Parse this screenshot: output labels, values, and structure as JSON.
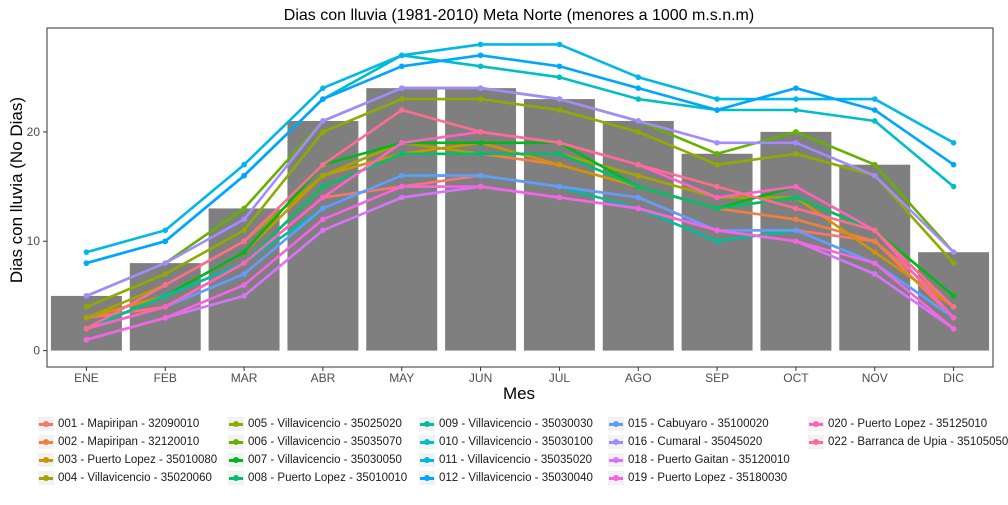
{
  "chart_data": {
    "type": "bar",
    "title": "Dias con lluvia (1981-2010) Meta Norte (menores a 1000 m.s.n.m)",
    "xlabel": "Mes",
    "ylabel": "Dias con lluvia (No Dias)",
    "categories": [
      "ENE",
      "FEB",
      "MAR",
      "ABR",
      "MAY",
      "JUN",
      "JUL",
      "AGO",
      "SEP",
      "OCT",
      "NOV",
      "DIC"
    ],
    "y_ticks": [
      0,
      10,
      20
    ],
    "ylim": [
      -1.5,
      29.5
    ],
    "grid": false,
    "bars": {
      "color": "#7f7f7f",
      "values": [
        5,
        8,
        13,
        21,
        24,
        24,
        23,
        21,
        18,
        20,
        17,
        9
      ]
    },
    "legend_position": "bottom",
    "series": [
      {
        "name": "001 - Mapiripan - 32090010",
        "color": "#F8766D",
        "values": [
          3,
          4,
          8,
          14,
          15,
          16,
          15,
          14,
          11,
          11,
          10,
          3
        ]
      },
      {
        "name": "002 - Mapiripan - 32120010",
        "color": "#ED8141",
        "values": [
          2,
          4,
          8,
          15,
          18,
          18,
          17,
          15,
          13,
          12,
          10,
          4
        ]
      },
      {
        "name": "003 - Puerto Lopez - 35010080",
        "color": "#CF9400",
        "values": [
          3,
          5,
          9,
          16,
          18,
          19,
          17,
          15,
          13,
          14,
          9,
          4
        ]
      },
      {
        "name": "004 - Villavicencio - 35020060",
        "color": "#A3A500",
        "values": [
          3,
          6,
          10,
          16,
          19,
          18,
          18,
          16,
          14,
          14,
          11,
          5
        ]
      },
      {
        "name": "005 - Villavicencio - 35025020",
        "color": "#8EAB00",
        "values": [
          4,
          7,
          11,
          20,
          23,
          23,
          22,
          20,
          17,
          18,
          16,
          8
        ]
      },
      {
        "name": "006 - Villavicencio - 35035070",
        "color": "#64B200",
        "values": [
          5,
          8,
          13,
          21,
          24,
          24,
          23,
          21,
          18,
          20,
          17,
          9
        ]
      },
      {
        "name": "007 - Villavicencio - 35030050",
        "color": "#00B81B",
        "values": [
          2,
          5,
          9,
          17,
          19,
          19,
          19,
          15,
          13,
          15,
          11,
          5
        ]
      },
      {
        "name": "008 - Puerto Lopez - 35010010",
        "color": "#00BE6C",
        "values": [
          2,
          5,
          8,
          15,
          18,
          18,
          18,
          15,
          13,
          14,
          11,
          4
        ]
      },
      {
        "name": "009 - Villavicencio - 35030030",
        "color": "#00BE9A",
        "values": [
          2,
          5,
          8,
          13,
          16,
          16,
          15,
          13,
          10,
          11,
          8,
          3
        ]
      },
      {
        "name": "010 - Villavicencio - 35030100",
        "color": "#00BFC4",
        "values": [
          8,
          10,
          16,
          23,
          27,
          26,
          25,
          23,
          22,
          22,
          21,
          15
        ]
      },
      {
        "name": "011 - Villavicencio - 35035020",
        "color": "#00B7E8",
        "values": [
          9,
          11,
          17,
          24,
          27,
          28,
          28,
          25,
          23,
          23,
          23,
          19
        ]
      },
      {
        "name": "012 - Villavicencio - 35030040",
        "color": "#00A5FF",
        "values": [
          8,
          10,
          16,
          23,
          26,
          27,
          26,
          24,
          22,
          24,
          22,
          17
        ]
      },
      {
        "name": "015 - Cabuyaro - 35100020",
        "color": "#619CFF",
        "values": [
          2,
          4,
          7,
          13,
          16,
          16,
          15,
          14,
          11,
          11,
          8,
          3
        ]
      },
      {
        "name": "016 - Cumaral - 35045020",
        "color": "#A58AFF",
        "values": [
          5,
          8,
          12,
          21,
          24,
          24,
          23,
          21,
          19,
          19,
          16,
          9
        ]
      },
      {
        "name": "018 - Puerto Gaitan - 35120010",
        "color": "#DB72FB",
        "values": [
          1,
          3,
          5,
          11,
          14,
          15,
          14,
          13,
          11,
          10,
          7,
          2
        ]
      },
      {
        "name": "019 - Puerto Lopez - 35180030",
        "color": "#F564E3",
        "values": [
          1,
          3,
          6,
          12,
          15,
          15,
          14,
          13,
          11,
          10,
          8,
          2
        ]
      },
      {
        "name": "020 - Puerto Lopez - 35125010",
        "color": "#FF61C3",
        "values": [
          2,
          4,
          8,
          14,
          19,
          20,
          19,
          17,
          14,
          15,
          11,
          3
        ]
      },
      {
        "name": "022 - Barranca de Upia - 35105050",
        "color": "#FF6C91",
        "values": [
          2,
          6,
          10,
          17,
          22,
          20,
          19,
          17,
          15,
          13,
          11,
          4
        ]
      }
    ]
  }
}
